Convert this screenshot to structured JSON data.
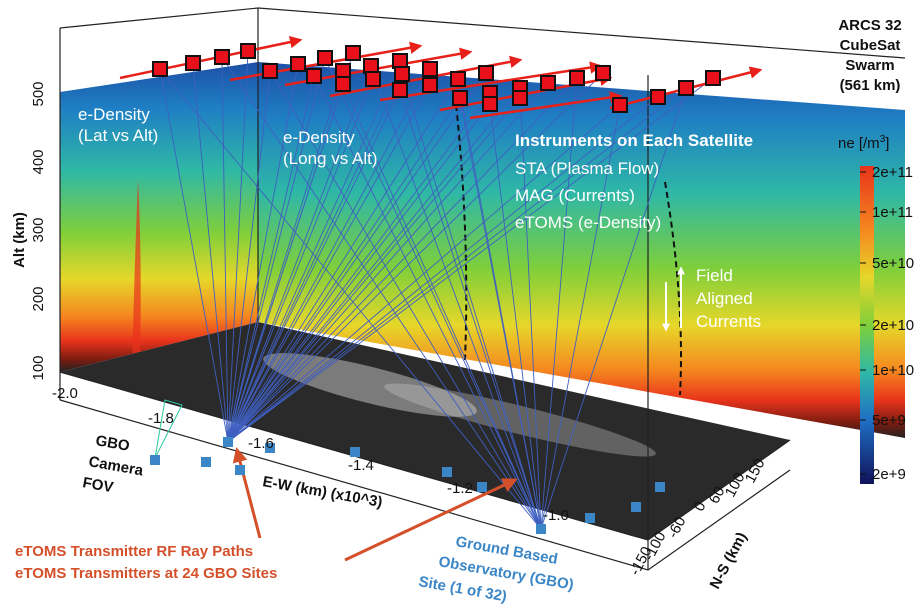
{
  "title_lines": [
    "ARCS 32",
    "CubeSat",
    "Swarm",
    "(561 km)"
  ],
  "colorbar": {
    "label": "ne [/m",
    "label_sup": "3",
    "label_end": "]",
    "ticks": [
      "2e+11",
      "1e+11",
      "5e+10",
      "2e+10",
      "1e+10",
      "5e+9",
      "2e+9"
    ]
  },
  "alt_axis": {
    "label": "Alt (km)",
    "ticks": [
      "100",
      "200",
      "300",
      "400",
      "500"
    ]
  },
  "ew_axis": {
    "label": "E-W (km) (x10^3)",
    "ticks": [
      "-2.0",
      "-1.8",
      "-1.6",
      "-1.4",
      "-1.2",
      "-1.0"
    ]
  },
  "ns_axis": {
    "label": "N-S (km)",
    "ticks": [
      "-150",
      "-100",
      "-60",
      "0",
      "60",
      "100",
      "150"
    ]
  },
  "panels": {
    "lat": [
      "e-Density",
      "(Lat vs Alt)"
    ],
    "long": [
      "e-Density",
      "(Long vs Alt)"
    ]
  },
  "instruments": {
    "title": "Instruments on Each Satellite",
    "items": [
      "STA (Plasma Flow)",
      "MAG (Currents)",
      "eTOMS (e-Density)"
    ]
  },
  "field": [
    "Field",
    "Aligned",
    "Currents"
  ],
  "gbo_camera": [
    "GBO",
    "Camera",
    "FOV"
  ],
  "annotations": {
    "ray_paths": "eTOMS Transmitter RF Ray Paths",
    "transmitters": "eTOMS Transmitters at 24 GBO Sites",
    "gbo": [
      "Ground Based",
      "Observatory (GBO)",
      "Site (1 of 32)"
    ]
  }
}
